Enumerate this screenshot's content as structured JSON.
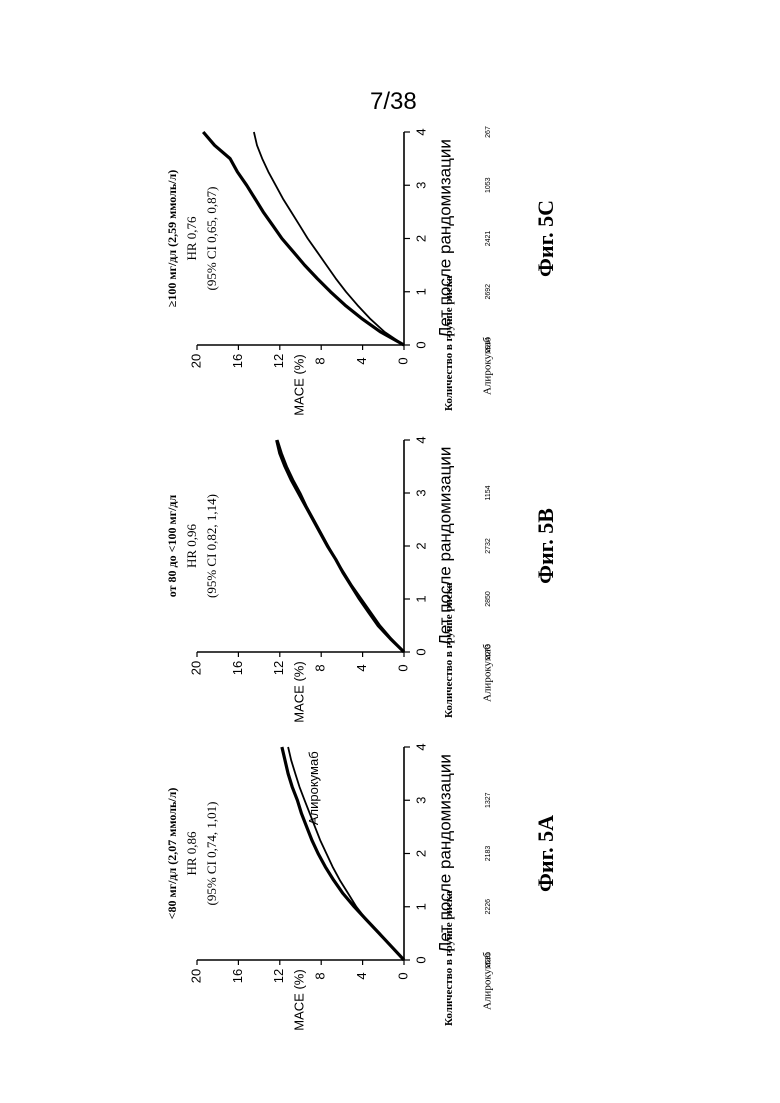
{
  "page": {
    "number": "7/38"
  },
  "chart_data": [
    {
      "type": "line",
      "figure_label": "Фиг. 5A",
      "title": "<80 мг/дл (2,07 ммоль/л)",
      "hr_text": "HR 0,86",
      "ci_text": "(95% CI 0,74, 1,01)",
      "xlabel": "Лет после рандомизации",
      "ylabel": "MACE (%)",
      "xlim": [
        0,
        4
      ],
      "ylim": [
        0,
        20
      ],
      "xticks": [
        "0",
        "1",
        "2",
        "3",
        "4"
      ],
      "yticks": [
        "0",
        "4",
        "8",
        "12",
        "16",
        "20"
      ],
      "series_label": "Алирокумаб",
      "risk_header": "Количество в группе риска",
      "risk_row_label": "Алирокумаб",
      "risk_counts": [
        "2521",
        "2226",
        "2183",
        "1327",
        ""
      ],
      "series": [
        {
          "name": "",
          "x": [
            0,
            0.25,
            0.5,
            0.75,
            1.0,
            1.25,
            1.5,
            1.75,
            2.0,
            2.25,
            2.5,
            2.75,
            3.0,
            3.25,
            3.5,
            3.75,
            4.0
          ],
          "values": [
            0,
            1.2,
            2.4,
            3.6,
            4.8,
            5.9,
            6.8,
            7.6,
            8.3,
            8.9,
            9.4,
            9.9,
            10.3,
            10.8,
            11.2,
            11.5,
            11.8
          ]
        },
        {
          "name": "Алирокумаб",
          "x": [
            0,
            0.25,
            0.5,
            0.75,
            1.0,
            1.25,
            1.5,
            1.75,
            2.0,
            2.25,
            2.5,
            2.75,
            3.0,
            3.25,
            3.5,
            3.75,
            4.0
          ],
          "values": [
            0,
            1.2,
            2.4,
            3.6,
            4.6,
            5.4,
            6.2,
            6.9,
            7.5,
            8.1,
            8.6,
            9.1,
            9.6,
            10.1,
            10.5,
            10.9,
            11.2
          ]
        }
      ]
    },
    {
      "type": "line",
      "figure_label": "Фиг. 5B",
      "title": "от 80 до <100 мг/дл",
      "hr_text": "HR 0,96",
      "ci_text": "(95% CI 0,82, 1,14)",
      "xlabel": "Лет после рандомизации",
      "ylabel": "MACE (%)",
      "xlim": [
        0,
        4
      ],
      "ylim": [
        0,
        20
      ],
      "xticks": [
        "0",
        "1",
        "2",
        "3",
        "4"
      ],
      "yticks": [
        "0",
        "4",
        "8",
        "12",
        "16",
        "20"
      ],
      "risk_header": "Количество в группе риска",
      "risk_row_label": "Алирокумаб",
      "risk_counts": [
        "2073",
        "2850",
        "2732",
        "1154",
        ""
      ],
      "series": [
        {
          "name": "",
          "x": [
            0,
            0.25,
            0.5,
            0.75,
            1.0,
            1.25,
            1.5,
            1.75,
            2.0,
            2.25,
            2.5,
            2.75,
            3.0,
            3.25,
            3.5,
            3.75,
            4.0
          ],
          "values": [
            0,
            1.3,
            2.5,
            3.4,
            4.3,
            5.1,
            5.9,
            6.6,
            7.4,
            8.1,
            8.8,
            9.5,
            10.2,
            10.9,
            11.5,
            12.0,
            12.3
          ]
        },
        {
          "name": "Алирокумаб",
          "x": [
            0,
            0.25,
            0.5,
            0.75,
            1.0,
            1.25,
            1.5,
            1.75,
            2.0,
            2.25,
            2.5,
            2.75,
            3.0,
            3.25,
            3.5,
            3.75,
            4.0
          ],
          "values": [
            0,
            1.2,
            2.3,
            3.2,
            4.1,
            5.0,
            5.8,
            6.6,
            7.3,
            8.0,
            8.7,
            9.4,
            10.0,
            10.7,
            11.3,
            11.8,
            12.2
          ]
        }
      ]
    },
    {
      "type": "line",
      "figure_label": "Фиг. 5C",
      "title": "≥100 мг/дл (2,59 ммоль/л)",
      "hr_text": "HR 0,76",
      "ci_text": "(95% CI 0,65, 0,87)",
      "xlabel": "Лет после рандомизации",
      "ylabel": "MACE (%)",
      "xlim": [
        0,
        4
      ],
      "ylim": [
        0,
        20
      ],
      "xticks": [
        "0",
        "1",
        "2",
        "3",
        "4"
      ],
      "yticks": [
        "0",
        "4",
        "8",
        "12",
        "16",
        "20"
      ],
      "risk_header": "Количество в группе риска",
      "risk_row_label": "Алирокумаб",
      "risk_counts": [
        "2914",
        "2692",
        "2421",
        "1053",
        "267"
      ],
      "series": [
        {
          "name": "",
          "x": [
            0,
            0.25,
            0.5,
            0.75,
            1.0,
            1.25,
            1.5,
            1.75,
            2.0,
            2.25,
            2.5,
            2.75,
            3.0,
            3.25,
            3.5,
            3.75,
            4.0
          ],
          "values": [
            0,
            2.3,
            4.1,
            5.7,
            7.1,
            8.4,
            9.6,
            10.7,
            11.8,
            12.7,
            13.6,
            14.4,
            15.2,
            16.1,
            16.8,
            18.3,
            19.4
          ]
        },
        {
          "name": "Алирокумаб",
          "x": [
            0,
            0.25,
            0.5,
            0.75,
            1.0,
            1.25,
            1.5,
            1.75,
            2.0,
            2.25,
            2.5,
            2.75,
            3.0,
            3.25,
            3.5,
            3.75,
            4.0
          ],
          "values": [
            0,
            1.9,
            3.3,
            4.5,
            5.6,
            6.6,
            7.5,
            8.4,
            9.3,
            10.1,
            10.9,
            11.7,
            12.4,
            13.1,
            13.7,
            14.2,
            14.5
          ]
        }
      ]
    }
  ]
}
